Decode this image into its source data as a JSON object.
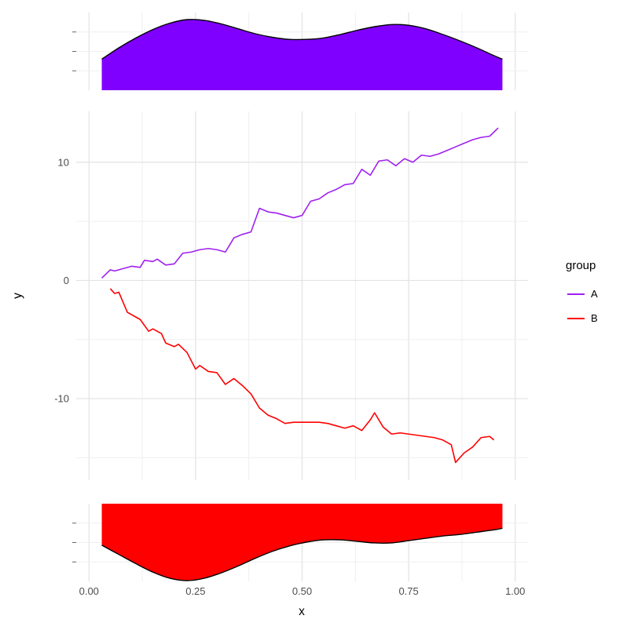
{
  "figure": {
    "background": "#FFFFFF"
  },
  "chart_data": {
    "type": "line",
    "title": "",
    "xlabel": "x",
    "ylabel": "y",
    "x_axis": {
      "lim": [
        -0.03,
        1.03
      ],
      "ticks": [
        {
          "value": 0.0,
          "label": "0.00"
        },
        {
          "value": 0.25,
          "label": "0.25"
        },
        {
          "value": 0.5,
          "label": "0.50"
        },
        {
          "value": 0.75,
          "label": "0.75"
        },
        {
          "value": 1.0,
          "label": "1.00"
        }
      ],
      "minor": [
        0.125,
        0.375,
        0.625,
        0.875
      ]
    },
    "y_axis": {
      "lim": [
        -16.9,
        14.3
      ],
      "ticks": [
        {
          "value": 10,
          "label": "10"
        },
        {
          "value": 0,
          "label": "0"
        },
        {
          "value": -10,
          "label": "-10"
        }
      ],
      "minor": [
        -15,
        -5,
        5
      ]
    },
    "grid": {
      "major_color": "#E2E2E2",
      "minor_color": "#EFEFEF",
      "on": true
    },
    "legend": {
      "title": "group",
      "position": "right",
      "entries": [
        {
          "label": "A",
          "color": "#A020F0"
        },
        {
          "label": "B",
          "color": "#FF0000"
        }
      ]
    },
    "series": [
      {
        "name": "A",
        "color": "#A020F0",
        "x": [
          0.03,
          0.05,
          0.06,
          0.08,
          0.1,
          0.12,
          0.13,
          0.15,
          0.16,
          0.18,
          0.2,
          0.22,
          0.24,
          0.26,
          0.28,
          0.3,
          0.32,
          0.34,
          0.36,
          0.38,
          0.4,
          0.42,
          0.44,
          0.46,
          0.48,
          0.5,
          0.52,
          0.54,
          0.56,
          0.58,
          0.6,
          0.62,
          0.64,
          0.66,
          0.68,
          0.7,
          0.72,
          0.74,
          0.76,
          0.78,
          0.8,
          0.82,
          0.84,
          0.86,
          0.88,
          0.9,
          0.92,
          0.94,
          0.96
        ],
        "y": [
          0.2,
          0.9,
          0.8,
          1.0,
          1.2,
          1.1,
          1.7,
          1.6,
          1.8,
          1.3,
          1.4,
          2.3,
          2.4,
          2.6,
          2.7,
          2.6,
          2.4,
          3.6,
          3.9,
          4.1,
          6.1,
          5.8,
          5.7,
          5.5,
          5.3,
          5.5,
          6.7,
          6.9,
          7.4,
          7.7,
          8.1,
          8.2,
          9.4,
          8.9,
          10.1,
          10.2,
          9.7,
          10.3,
          10.0,
          10.6,
          10.5,
          10.7,
          11.0,
          11.3,
          11.6,
          11.9,
          12.1,
          12.2,
          12.9
        ]
      },
      {
        "name": "B",
        "color": "#FF0000",
        "x": [
          0.05,
          0.06,
          0.07,
          0.09,
          0.11,
          0.12,
          0.14,
          0.15,
          0.17,
          0.18,
          0.2,
          0.21,
          0.23,
          0.25,
          0.26,
          0.28,
          0.3,
          0.32,
          0.34,
          0.36,
          0.38,
          0.4,
          0.42,
          0.44,
          0.46,
          0.48,
          0.5,
          0.52,
          0.54,
          0.56,
          0.58,
          0.6,
          0.62,
          0.64,
          0.66,
          0.67,
          0.69,
          0.71,
          0.73,
          0.75,
          0.77,
          0.79,
          0.81,
          0.83,
          0.85,
          0.86,
          0.88,
          0.9,
          0.92,
          0.94,
          0.95
        ],
        "y": [
          -0.7,
          -1.1,
          -1.0,
          -2.7,
          -3.1,
          -3.3,
          -4.3,
          -4.1,
          -4.5,
          -5.3,
          -5.6,
          -5.4,
          -6.1,
          -7.5,
          -7.2,
          -7.7,
          -7.8,
          -8.8,
          -8.3,
          -8.9,
          -9.6,
          -10.8,
          -11.4,
          -11.7,
          -12.1,
          -12.0,
          -12.0,
          -12.0,
          -12.0,
          -12.1,
          -12.3,
          -12.5,
          -12.3,
          -12.7,
          -11.8,
          -11.2,
          -12.4,
          -13.0,
          -12.9,
          -13.0,
          -13.1,
          -13.2,
          -13.3,
          -13.5,
          -13.9,
          -15.4,
          -14.6,
          -14.1,
          -13.3,
          -13.2,
          -13.5
        ]
      }
    ],
    "marginal_top": {
      "type": "density-area",
      "group": "A",
      "fill": "#8000FF",
      "outline": "#000000",
      "x": [
        0.03,
        0.07,
        0.11,
        0.15,
        0.19,
        0.23,
        0.27,
        0.31,
        0.35,
        0.39,
        0.43,
        0.47,
        0.51,
        0.55,
        0.59,
        0.63,
        0.67,
        0.71,
        0.75,
        0.79,
        0.83,
        0.87,
        0.91,
        0.95,
        0.97
      ],
      "height": [
        0.44,
        0.6,
        0.74,
        0.86,
        0.95,
        1.0,
        0.99,
        0.94,
        0.87,
        0.8,
        0.75,
        0.72,
        0.72,
        0.74,
        0.79,
        0.85,
        0.9,
        0.93,
        0.92,
        0.87,
        0.79,
        0.7,
        0.6,
        0.49,
        0.44
      ]
    },
    "marginal_bottom": {
      "type": "density-area",
      "group": "B",
      "flipped": true,
      "fill": "#FF0000",
      "outline": "#000000",
      "x": [
        0.03,
        0.07,
        0.11,
        0.15,
        0.19,
        0.23,
        0.27,
        0.31,
        0.35,
        0.39,
        0.43,
        0.47,
        0.51,
        0.55,
        0.59,
        0.63,
        0.67,
        0.71,
        0.75,
        0.79,
        0.83,
        0.87,
        0.91,
        0.95,
        0.97
      ],
      "height": [
        0.54,
        0.66,
        0.78,
        0.89,
        0.97,
        1.0,
        0.97,
        0.9,
        0.81,
        0.71,
        0.62,
        0.55,
        0.5,
        0.47,
        0.47,
        0.49,
        0.51,
        0.51,
        0.48,
        0.45,
        0.42,
        0.4,
        0.37,
        0.34,
        0.32
      ]
    }
  }
}
